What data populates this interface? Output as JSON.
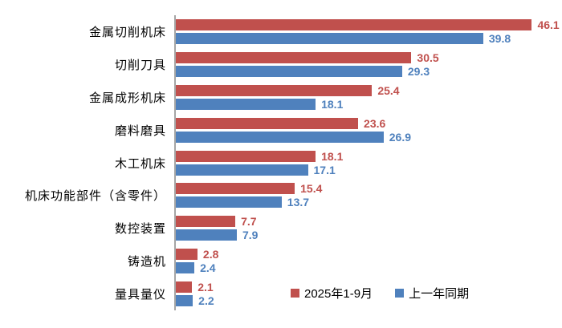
{
  "chart_data": {
    "type": "bar",
    "orientation": "horizontal",
    "title": "",
    "xlabel": "",
    "ylabel": "",
    "xlim": [
      0,
      50
    ],
    "grid": false,
    "legend_position": "bottom",
    "axis_color": "#a6a6a6",
    "value_labels": true,
    "categories": [
      "金属切削机床",
      "切削刀具",
      "金属成形机床",
      "磨料磨具",
      "木工机床",
      "机床功能部件（含零件）",
      "数控装置",
      "铸造机",
      "量具量仪"
    ],
    "series": [
      {
        "name": "2025年1-9月",
        "color": "#C0504D",
        "values": [
          46.1,
          30.5,
          25.4,
          23.6,
          18.1,
          15.4,
          7.7,
          2.8,
          2.1
        ]
      },
      {
        "name": "上一年同期",
        "color": "#4F81BD",
        "values": [
          39.8,
          29.3,
          18.1,
          26.9,
          17.1,
          13.7,
          7.9,
          2.4,
          2.2
        ]
      }
    ]
  }
}
